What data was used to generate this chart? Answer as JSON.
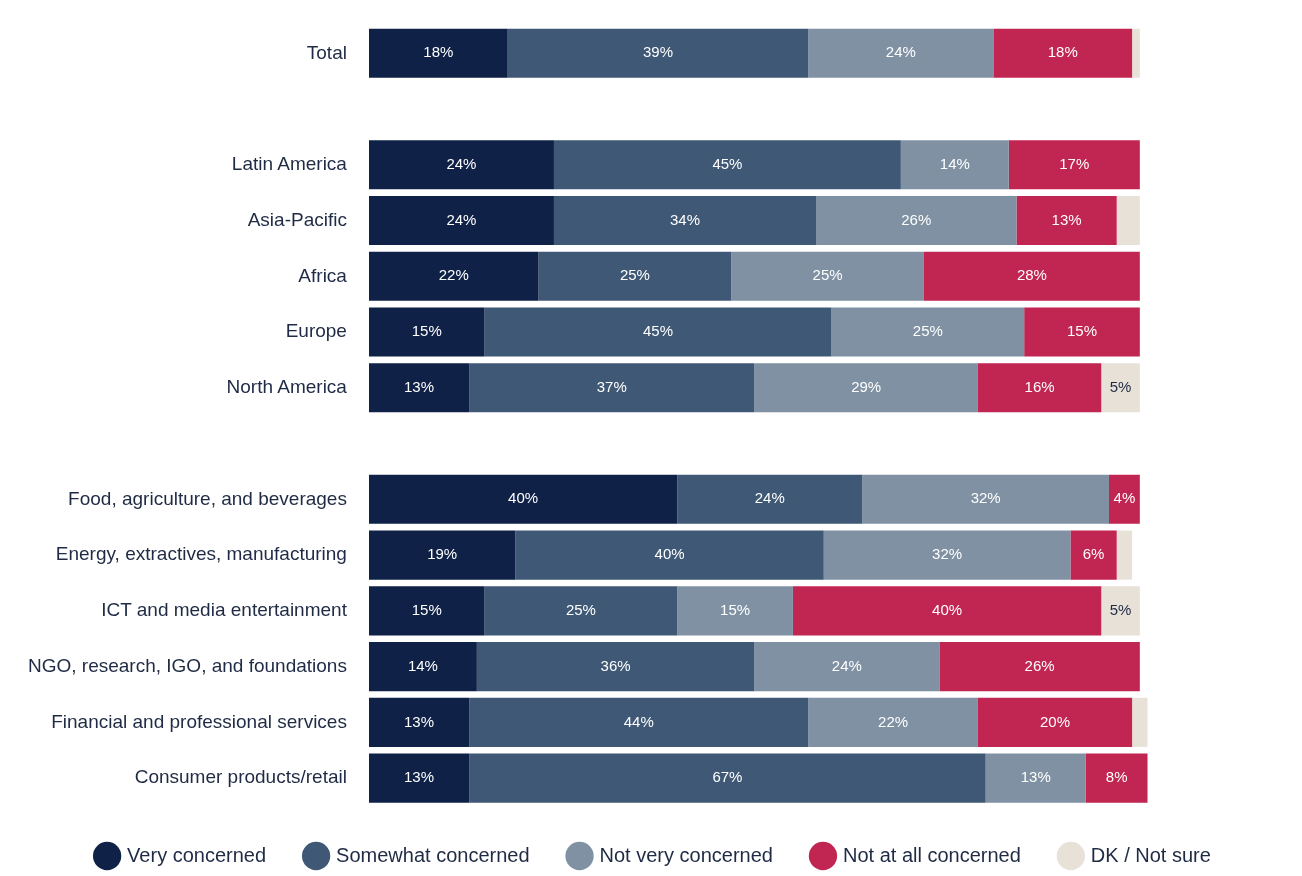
{
  "chart_data": {
    "type": "bar",
    "orientation": "horizontal",
    "stacked": true,
    "legend": "bottom",
    "categories": [
      "Total",
      null,
      "Latin America",
      "Asia-Pacific",
      "Africa",
      "Europe",
      "North America",
      null,
      "Food, agriculture, and beverages",
      "Energy, extractives, manufacturing",
      "ICT and media entertainment",
      "NGO, research, IGO, and foundations",
      "Financial and professional services",
      "Consumer products/retail"
    ],
    "series": [
      {
        "name": "Very concerned",
        "color": "#0f2146",
        "values": [
          18,
          null,
          24,
          24,
          22,
          15,
          13,
          null,
          40,
          19,
          15,
          14,
          13,
          13
        ],
        "value_labels": [
          "18%",
          null,
          "24%",
          "24%",
          "22%",
          "15%",
          "13%",
          null,
          "40%",
          "19%",
          "15%",
          "14%",
          "13%",
          "13%"
        ]
      },
      {
        "name": "Somewhat concerned",
        "color": "#3f5876",
        "values": [
          39,
          null,
          45,
          34,
          25,
          45,
          37,
          null,
          24,
          40,
          25,
          36,
          44,
          67
        ],
        "value_labels": [
          "39%",
          null,
          "45%",
          "34%",
          "25%",
          "45%",
          "37%",
          null,
          "24%",
          "40%",
          "25%",
          "36%",
          "44%",
          "67%"
        ]
      },
      {
        "name": "Not very concerned",
        "color": "#7f91a3",
        "values": [
          24,
          null,
          14,
          26,
          25,
          25,
          29,
          null,
          32,
          32,
          15,
          24,
          22,
          13
        ],
        "value_labels": [
          "24%",
          null,
          "14%",
          "26%",
          "25%",
          "25%",
          "29%",
          null,
          "32%",
          "32%",
          "15%",
          "24%",
          "22%",
          "13%"
        ]
      },
      {
        "name": "Not at all concerned",
        "color": "#c12551",
        "values": [
          18,
          null,
          17,
          13,
          28,
          15,
          16,
          null,
          4,
          6,
          40,
          26,
          20,
          8
        ],
        "value_labels": [
          "18%",
          null,
          "17%",
          "13%",
          "28%",
          "15%",
          "16%",
          null,
          "4%",
          "6%",
          "40%",
          "26%",
          "20%",
          "8%"
        ]
      },
      {
        "name": "DK / Not sure",
        "color": "#e8e1d8",
        "values": [
          1,
          null,
          0,
          3,
          0,
          0,
          5,
          null,
          0,
          2,
          5,
          0,
          2,
          0
        ],
        "value_labels": [
          null,
          null,
          null,
          null,
          null,
          null,
          "5%",
          null,
          null,
          null,
          "5%",
          null,
          null,
          null
        ]
      }
    ]
  }
}
